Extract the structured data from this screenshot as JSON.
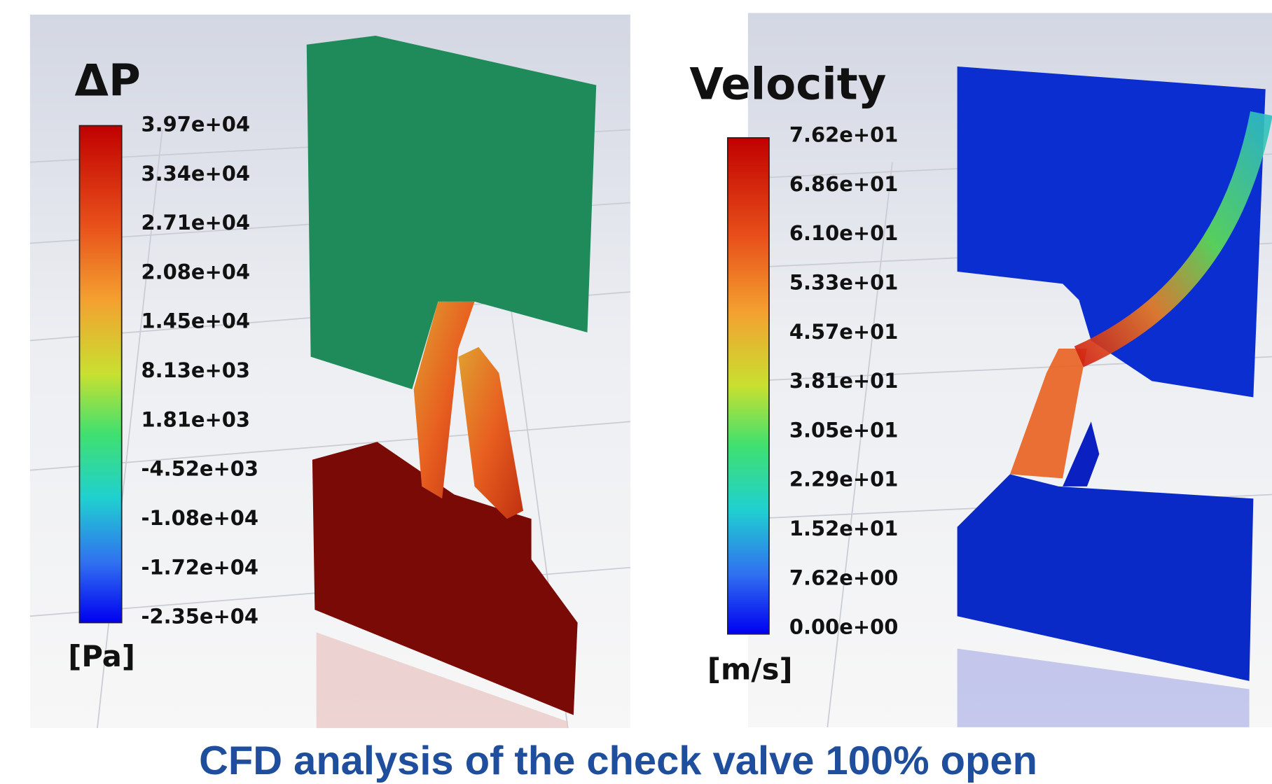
{
  "panels": [
    {
      "title": "ΔP",
      "unit": "[Pa]",
      "legend_labels": [
        "3.97e+04",
        "3.34e+04",
        "2.71e+04",
        "2.08e+04",
        "1.45e+04",
        "8.13e+03",
        "1.81e+03",
        "-4.52e+03",
        "-1.08e+04",
        "-1.72e+04",
        "-2.35e+04"
      ]
    },
    {
      "title": "Velocity",
      "unit": "[m/s]",
      "legend_labels": [
        "7.62e+01",
        "6.86e+01",
        "6.10e+01",
        "5.33e+01",
        "4.57e+01",
        "3.81e+01",
        "3.05e+01",
        "2.29e+01",
        "1.52e+01",
        "7.62e+00",
        "0.00e+00"
      ]
    }
  ],
  "caption": "CFD analysis of the check valve 100% open"
}
